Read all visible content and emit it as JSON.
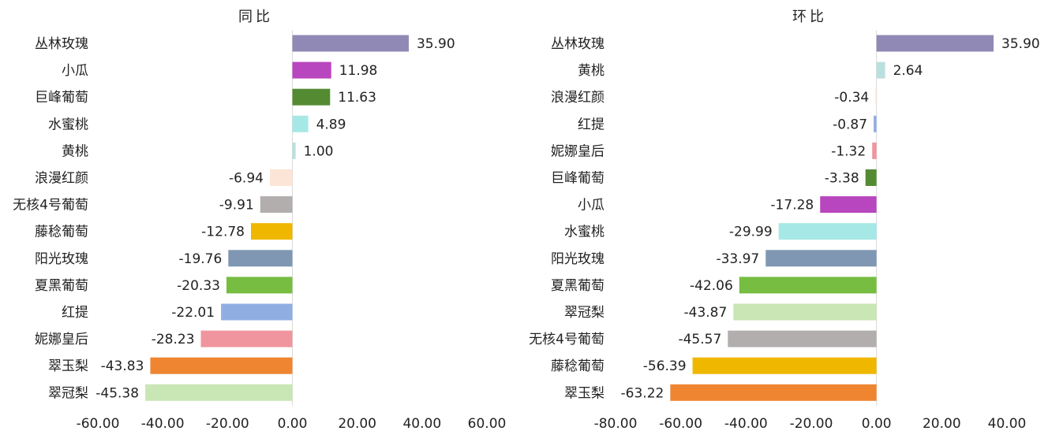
{
  "chart_data": [
    {
      "type": "bar",
      "orientation": "horizontal",
      "title": "同比",
      "xlabel": "",
      "ylabel": "",
      "xlim": [
        -60,
        60
      ],
      "ticks": [
        "-60.00",
        "-40.00",
        "-20.00",
        "0.00",
        "20.00",
        "40.00",
        "60.00"
      ],
      "tick_values": [
        -60,
        -40,
        -20,
        0,
        20,
        40,
        60
      ],
      "grid": false,
      "categories": [
        "丛林玫瑰",
        "小瓜",
        "巨峰葡萄",
        "水蜜桃",
        "黄桃",
        "浪漫红颜",
        "无核4号葡萄",
        "藤稔葡萄",
        "阳光玫瑰",
        "夏黑葡萄",
        "红提",
        "妮娜皇后",
        "翠玉梨",
        "翠冠梨"
      ],
      "values": [
        35.9,
        11.98,
        11.63,
        4.89,
        1.0,
        -6.94,
        -9.91,
        -12.78,
        -19.76,
        -20.33,
        -22.01,
        -28.23,
        -43.83,
        -45.38
      ],
      "labels": [
        "35.90",
        "11.98",
        "11.63",
        "4.89",
        "1.00",
        "-6.94",
        "-9.91",
        "-12.78",
        "-19.76",
        "-20.33",
        "-22.01",
        "-28.23",
        "-43.83",
        "-45.38"
      ],
      "colors": [
        "#9189b5",
        "#b846be",
        "#548b32",
        "#a6e8e5",
        "#b9e0de",
        "#fce5d6",
        "#b3aeae",
        "#f0b700",
        "#7f97b2",
        "#76bd42",
        "#91aee3",
        "#f0959e",
        "#ef8531",
        "#c9e6b5"
      ]
    },
    {
      "type": "bar",
      "orientation": "horizontal",
      "title": "环比",
      "xlabel": "",
      "ylabel": "",
      "xlim": [
        -80,
        40
      ],
      "ticks": [
        "-80.00",
        "-60.00",
        "-40.00",
        "-20.00",
        "0.00",
        "20.00",
        "40.00"
      ],
      "tick_values": [
        -80,
        -60,
        -40,
        -20,
        0,
        20,
        40
      ],
      "grid": false,
      "categories": [
        "丛林玫瑰",
        "黄桃",
        "浪漫红颜",
        "红提",
        "妮娜皇后",
        "巨峰葡萄",
        "小瓜",
        "水蜜桃",
        "阳光玫瑰",
        "夏黑葡萄",
        "翠冠梨",
        "无核4号葡萄",
        "藤稔葡萄",
        "翠玉梨"
      ],
      "values": [
        35.9,
        2.64,
        -0.34,
        -0.87,
        -1.32,
        -3.38,
        -17.28,
        -29.99,
        -33.97,
        -42.06,
        -43.87,
        -45.57,
        -56.39,
        -63.22
      ],
      "labels": [
        "35.90",
        "2.64",
        "-0.34",
        "-0.87",
        "-1.32",
        "-3.38",
        "-17.28",
        "-29.99",
        "-33.97",
        "-42.06",
        "-43.87",
        "-45.57",
        "-56.39",
        "-63.22"
      ],
      "colors": [
        "#9189b5",
        "#b9e0de",
        "#fce5d6",
        "#91aee3",
        "#f0959e",
        "#548b32",
        "#b846be",
        "#a6e8e5",
        "#7f97b2",
        "#76bd42",
        "#c9e6b5",
        "#b3aeae",
        "#f0b700",
        "#ef8531"
      ]
    }
  ]
}
